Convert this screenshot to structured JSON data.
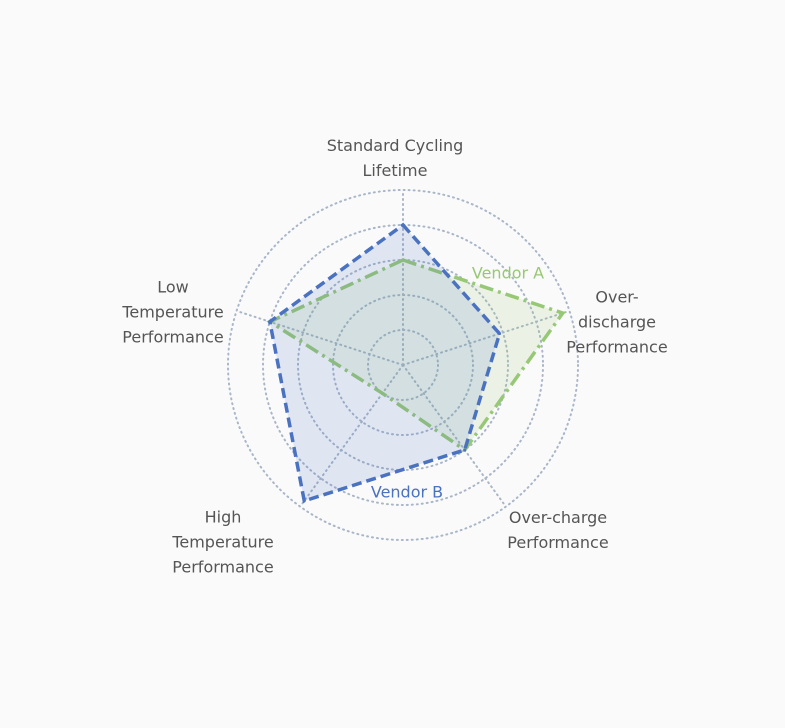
{
  "chart_data": {
    "type": "radar",
    "categories": [
      "Standard Cycling\nLifetime",
      "Over-\ndischarge\nPerformance",
      "Over-charge\nPerformance",
      "High\nTemperature\nPerformance",
      "Low\nTemperature\nPerformance"
    ],
    "rlim": [
      0,
      5
    ],
    "rticks": [
      1,
      2,
      3,
      4,
      5
    ],
    "grid": true,
    "series": [
      {
        "name": "Vendor A",
        "color": "#97c875",
        "values": [
          3,
          4.8,
          3,
          1,
          4
        ]
      },
      {
        "name": "Vendor B",
        "color": "#4a72c0",
        "values": [
          4,
          2.9,
          3,
          4.8,
          4
        ]
      }
    ]
  }
}
